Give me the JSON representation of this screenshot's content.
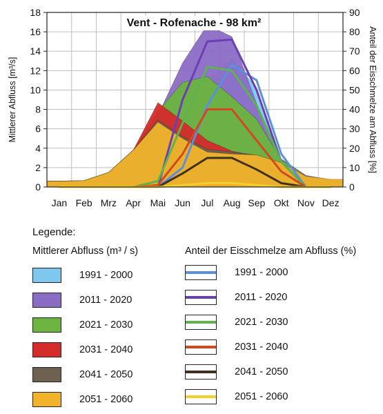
{
  "chart_data": {
    "type": "area",
    "title": "Vent - Rofenache - 98 km²",
    "ylabel_left": "Mittlerer Abfluss [m³/s]",
    "ylabel_right": "Anteil der Eisschmelze am Abfluss [%]",
    "ylim_left": [
      0,
      18
    ],
    "ylim_right": [
      0,
      90
    ],
    "yticks_left": [
      0,
      2,
      4,
      6,
      8,
      10,
      12,
      14,
      16,
      18
    ],
    "yticks_right": [
      0,
      10,
      20,
      30,
      40,
      50,
      60,
      70,
      80,
      90
    ],
    "categories": [
      "Jan",
      "Feb",
      "Mrz",
      "Apr",
      "Mai",
      "Jun",
      "Jul",
      "Aug",
      "Sep",
      "Okt",
      "Nov",
      "Dez"
    ],
    "grid": true,
    "discharge_series": [
      {
        "name": "1991 - 2000",
        "color": "#7ec8f0",
        "values": [
          0.6,
          0.65,
          1.4,
          3.6,
          6.8,
          9.5,
          10.8,
          13.2,
          10.2,
          2.8,
          1.1,
          0.7
        ]
      },
      {
        "name": "2011 - 2020",
        "color": "#8b6cc4",
        "values": [
          0.6,
          0.65,
          1.5,
          3.8,
          7.4,
          12.8,
          16.7,
          15.5,
          8.6,
          2.9,
          1.2,
          0.75
        ]
      },
      {
        "name": "2021 - 2030",
        "color": "#6cb33f",
        "values": [
          0.6,
          0.65,
          1.5,
          3.8,
          7.8,
          10.8,
          11.4,
          9.3,
          7.0,
          2.8,
          1.1,
          0.7
        ]
      },
      {
        "name": "2031 - 2040",
        "color": "#d42b2b",
        "values": [
          0.6,
          0.65,
          1.5,
          3.8,
          8.7,
          6.8,
          4.8,
          3.7,
          3.2,
          2.4,
          1.0,
          0.7
        ]
      },
      {
        "name": "2041 - 2050",
        "color": "#6e6150",
        "values": [
          0.6,
          0.65,
          1.5,
          3.8,
          6.9,
          5.2,
          3.9,
          3.6,
          3.3,
          2.5,
          1.0,
          0.7
        ]
      },
      {
        "name": "2051 - 2060",
        "color": "#f0b32a",
        "values": [
          0.6,
          0.65,
          1.5,
          3.8,
          6.7,
          5.0,
          3.6,
          3.4,
          3.3,
          2.5,
          1.1,
          0.8
        ]
      }
    ],
    "glacier_melt_series": [
      {
        "name": "1991 - 2000",
        "color": "#5a8fe0",
        "values": [
          0,
          0,
          0,
          0,
          0,
          10,
          42,
          63,
          55,
          17,
          0,
          0
        ]
      },
      {
        "name": "2011 - 2020",
        "color": "#6a3fb5",
        "values": [
          0,
          0,
          0,
          0,
          0,
          45,
          75,
          76,
          50,
          13,
          0,
          0
        ]
      },
      {
        "name": "2021 - 2030",
        "color": "#5fb34f",
        "values": [
          0,
          0,
          0,
          0,
          3,
          33,
          62,
          60,
          42,
          13,
          0,
          0
        ]
      },
      {
        "name": "2031 - 2040",
        "color": "#d2481f",
        "values": [
          0,
          0,
          0,
          0,
          1,
          17,
          40,
          40,
          24,
          8,
          0,
          0
        ]
      },
      {
        "name": "2041 - 2050",
        "color": "#3f3120",
        "values": [
          0,
          0,
          0,
          0,
          0,
          7,
          15,
          15,
          9,
          2,
          0,
          0
        ]
      },
      {
        "name": "2051 - 2060",
        "color": "#f2cf2a",
        "values": [
          0,
          0,
          0,
          0,
          0,
          1,
          2,
          2,
          1,
          0,
          0,
          0
        ]
      }
    ]
  },
  "legend": {
    "heading": "Legende:",
    "left_title": "Mittlerer Abfluss (m³ / s)",
    "right_title": "Anteil der Eisschmelze am Abfluss (%)"
  }
}
